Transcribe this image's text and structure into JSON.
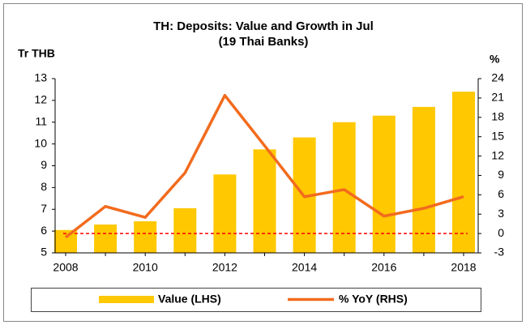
{
  "chart_data": {
    "type": "bar_line",
    "title": "TH: Deposits: Value and Growth in Jul",
    "subtitle": "(19 Thai Banks)",
    "y_label": "Tr THB",
    "y2_label": "%",
    "categories": [
      "2008",
      null,
      "2010",
      null,
      "2012",
      null,
      "2014",
      null,
      "2016",
      null,
      "2018"
    ],
    "series": [
      {
        "name": "Value (LHS)",
        "type": "bar",
        "color": "#ffc800",
        "values": [
          6.05,
          6.3,
          6.45,
          7.05,
          8.6,
          9.75,
          10.3,
          11.0,
          11.3,
          11.7,
          12.4
        ]
      },
      {
        "name": "% YoY (RHS)",
        "type": "line",
        "axis": "y2",
        "color": "#f26b1d",
        "values": [
          -0.6,
          4.2,
          2.5,
          9.4,
          21.4,
          13.6,
          5.7,
          6.8,
          2.7,
          3.9,
          5.7
        ]
      }
    ],
    "ylim": [
      5,
      13
    ],
    "yticks": [
      5,
      6,
      7,
      8,
      9,
      10,
      11,
      12,
      13
    ],
    "y2lim": [
      -3,
      24
    ],
    "y2ticks": [
      -3,
      0,
      3,
      6,
      9,
      12,
      15,
      18,
      21,
      24
    ],
    "reference_line": {
      "axis": "y2",
      "value": 0,
      "color": "#ff0000"
    },
    "legend": "bottom"
  }
}
